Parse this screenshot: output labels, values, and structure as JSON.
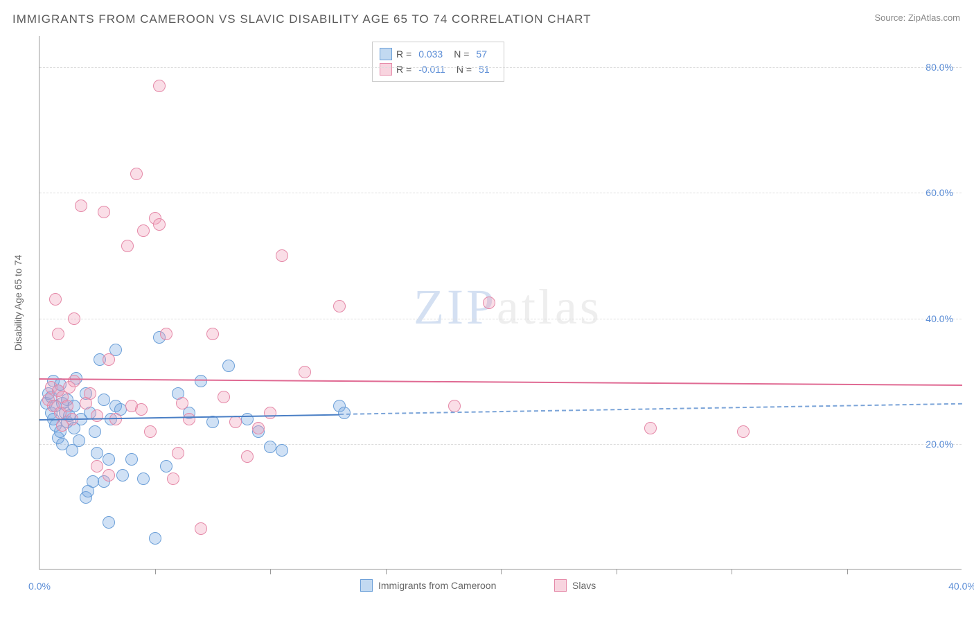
{
  "title": "IMMIGRANTS FROM CAMEROON VS SLAVIC DISABILITY AGE 65 TO 74 CORRELATION CHART",
  "source": "Source: ZipAtlas.com",
  "yaxis_title": "Disability Age 65 to 74",
  "watermark_zip": "ZIP",
  "watermark_atlas": "atlas",
  "chart": {
    "type": "scatter",
    "xlim": [
      0,
      40
    ],
    "ylim": [
      0,
      85
    ],
    "ytick_values": [
      20,
      40,
      60,
      80
    ],
    "ytick_labels": [
      "20.0%",
      "40.0%",
      "60.0%",
      "80.0%"
    ],
    "xtick_values": [
      0,
      40
    ],
    "xtick_labels": [
      "0.0%",
      "40.0%"
    ],
    "xtick_minor": [
      5,
      10,
      15,
      20,
      25,
      30,
      35
    ],
    "background_color": "#ffffff",
    "grid_color": "#dddddd",
    "axis_color": "#999999",
    "label_color": "#5b8dd6",
    "marker_radius": 9,
    "marker_stroke_width": 1.5,
    "series": [
      {
        "name": "Immigrants from Cameroon",
        "fill_color": "rgba(120,170,225,0.35)",
        "stroke_color": "#6b9fd8",
        "R": "0.033",
        "N": "57",
        "trend": {
          "y_at_x0": 24.0,
          "y_at_xmax": 26.5,
          "solid_until_x": 13.0,
          "solid_color": "#4a7fc5",
          "dash_color": "#7ba4d8",
          "width": 2
        },
        "points": [
          [
            0.3,
            26.5
          ],
          [
            0.4,
            28.0
          ],
          [
            0.5,
            25.0
          ],
          [
            0.5,
            27.5
          ],
          [
            0.6,
            24.0
          ],
          [
            0.6,
            30.0
          ],
          [
            0.7,
            26.0
          ],
          [
            0.7,
            23.0
          ],
          [
            0.8,
            21.0
          ],
          [
            0.8,
            28.5
          ],
          [
            0.9,
            22.0
          ],
          [
            0.9,
            29.5
          ],
          [
            1.0,
            26.5
          ],
          [
            1.0,
            20.0
          ],
          [
            1.1,
            25.0
          ],
          [
            1.2,
            23.5
          ],
          [
            1.2,
            27.0
          ],
          [
            1.3,
            24.5
          ],
          [
            1.4,
            19.0
          ],
          [
            1.5,
            26.0
          ],
          [
            1.5,
            22.5
          ],
          [
            1.6,
            30.5
          ],
          [
            1.7,
            20.5
          ],
          [
            1.8,
            24.0
          ],
          [
            2.0,
            28.0
          ],
          [
            2.0,
            11.5
          ],
          [
            2.1,
            12.5
          ],
          [
            2.2,
            25.0
          ],
          [
            2.3,
            14.0
          ],
          [
            2.4,
            22.0
          ],
          [
            2.5,
            18.5
          ],
          [
            2.6,
            33.5
          ],
          [
            2.8,
            27.0
          ],
          [
            2.8,
            14.0
          ],
          [
            3.0,
            17.5
          ],
          [
            3.0,
            7.5
          ],
          [
            3.1,
            24.0
          ],
          [
            3.3,
            35.0
          ],
          [
            3.3,
            26.0
          ],
          [
            3.5,
            25.5
          ],
          [
            3.6,
            15.0
          ],
          [
            4.0,
            17.5
          ],
          [
            4.5,
            14.5
          ],
          [
            5.0,
            5.0
          ],
          [
            5.2,
            37.0
          ],
          [
            5.5,
            16.5
          ],
          [
            6.0,
            28.0
          ],
          [
            6.5,
            25.0
          ],
          [
            7.0,
            30.0
          ],
          [
            7.5,
            23.5
          ],
          [
            8.2,
            32.5
          ],
          [
            9.0,
            24.0
          ],
          [
            9.5,
            22.0
          ],
          [
            10.0,
            19.5
          ],
          [
            10.5,
            19.0
          ],
          [
            13.0,
            26.0
          ],
          [
            13.2,
            25.0
          ]
        ]
      },
      {
        "name": "Slavs",
        "fill_color": "rgba(240,160,185,0.35)",
        "stroke_color": "#e589a8",
        "R": "-0.011",
        "N": "51",
        "trend": {
          "y_at_x0": 30.5,
          "y_at_xmax": 29.5,
          "solid_until_x": 40.0,
          "solid_color": "#e06a93",
          "dash_color": "#e06a93",
          "width": 2
        },
        "points": [
          [
            0.4,
            27.0
          ],
          [
            0.5,
            29.0
          ],
          [
            0.6,
            26.0
          ],
          [
            0.7,
            43.0
          ],
          [
            0.8,
            28.5
          ],
          [
            0.8,
            37.5
          ],
          [
            0.9,
            25.0
          ],
          [
            1.0,
            27.5
          ],
          [
            1.0,
            23.0
          ],
          [
            1.2,
            26.0
          ],
          [
            1.3,
            29.0
          ],
          [
            1.4,
            24.0
          ],
          [
            1.5,
            30.0
          ],
          [
            1.5,
            40.0
          ],
          [
            1.8,
            58.0
          ],
          [
            2.0,
            26.5
          ],
          [
            2.2,
            28.0
          ],
          [
            2.5,
            16.5
          ],
          [
            2.5,
            24.5
          ],
          [
            2.8,
            57.0
          ],
          [
            3.0,
            33.5
          ],
          [
            3.0,
            15.0
          ],
          [
            3.3,
            24.0
          ],
          [
            3.8,
            51.5
          ],
          [
            4.0,
            26.0
          ],
          [
            4.2,
            63.0
          ],
          [
            4.4,
            25.5
          ],
          [
            4.5,
            54.0
          ],
          [
            4.8,
            22.0
          ],
          [
            5.0,
            56.0
          ],
          [
            5.2,
            55.0
          ],
          [
            5.2,
            77.0
          ],
          [
            5.5,
            37.5
          ],
          [
            5.8,
            14.5
          ],
          [
            6.0,
            18.5
          ],
          [
            6.2,
            26.5
          ],
          [
            6.5,
            24.0
          ],
          [
            7.0,
            6.5
          ],
          [
            7.5,
            37.5
          ],
          [
            8.0,
            27.5
          ],
          [
            8.5,
            23.5
          ],
          [
            9.0,
            18.0
          ],
          [
            9.5,
            22.5
          ],
          [
            10.0,
            25.0
          ],
          [
            11.5,
            31.5
          ],
          [
            13.0,
            42.0
          ],
          [
            18.0,
            26.0
          ],
          [
            19.5,
            42.5
          ],
          [
            26.5,
            22.5
          ],
          [
            30.5,
            22.0
          ],
          [
            10.5,
            50.0
          ]
        ]
      }
    ]
  },
  "legend_box": {
    "rows": [
      {
        "swatch_fill": "rgba(120,170,225,0.45)",
        "swatch_border": "#6b9fd8",
        "r_label": "R =",
        "r_val": "0.033",
        "n_label": "N =",
        "n_val": "57"
      },
      {
        "swatch_fill": "rgba(240,160,185,0.45)",
        "swatch_border": "#e589a8",
        "r_label": "R =",
        "r_val": "-0.011",
        "n_label": "N =",
        "n_val": "51"
      }
    ]
  },
  "bottom_legend": [
    {
      "swatch_fill": "rgba(120,170,225,0.45)",
      "swatch_border": "#6b9fd8",
      "label": "Immigrants from Cameroon"
    },
    {
      "swatch_fill": "rgba(240,160,185,0.45)",
      "swatch_border": "#e589a8",
      "label": "Slavs"
    }
  ]
}
